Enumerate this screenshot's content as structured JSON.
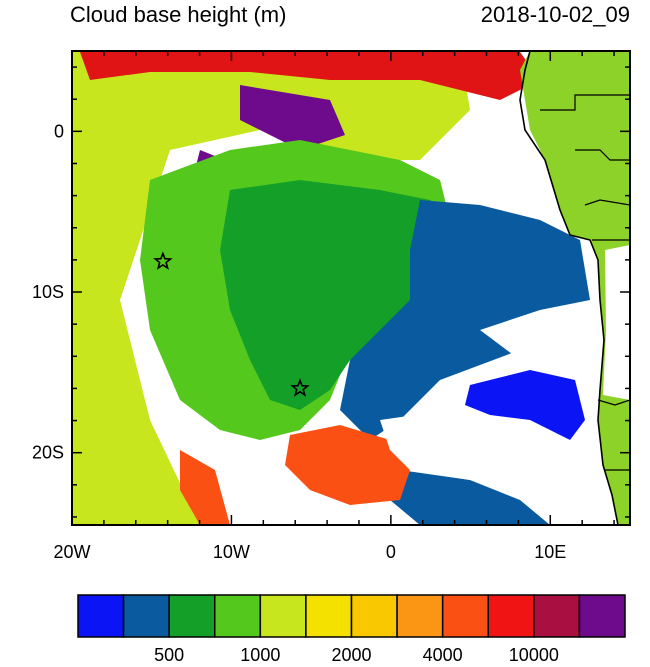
{
  "map": {
    "title": "Cloud base height (m)",
    "timestamp": "2018-10-02_09",
    "longitude_ticks": [
      {
        "value": -20,
        "label": "20W"
      },
      {
        "value": -10,
        "label": "10W"
      },
      {
        "value": 0,
        "label": "0"
      },
      {
        "value": 10,
        "label": "10E"
      }
    ],
    "latitude_ticks": [
      {
        "value": 0,
        "label": "0"
      },
      {
        "value": -10,
        "label": "10S"
      },
      {
        "value": -20,
        "label": "20S"
      }
    ],
    "extent": {
      "lon_min": -20,
      "lon_max": 15,
      "lat_min": -24.5,
      "lat_max": 5
    }
  },
  "colorbar": {
    "colors": [
      "#0a14f5",
      "#0a5aa0",
      "#14a028",
      "#55c81e",
      "#c8e61e",
      "#f5e100",
      "#fac800",
      "#fa9614",
      "#fa5014",
      "#f01414",
      "#aa0f41",
      "#6e0a8c"
    ],
    "labels": [
      {
        "text": "500",
        "after_box": 2
      },
      {
        "text": "1000",
        "after_box": 4
      },
      {
        "text": "2000",
        "after_box": 6
      },
      {
        "text": "4000",
        "after_box": 8
      },
      {
        "text": "10000",
        "after_box": 10
      }
    ]
  },
  "markers": [
    {
      "name": "star-marker-north",
      "lon": -14.3,
      "lat": -8.1
    },
    {
      "name": "star-marker-south",
      "lon": -5.7,
      "lat": -16.0
    }
  ],
  "colors": {
    "ocean_clear": "#ffffff",
    "land": "#8cd228",
    "coastline": "#000000",
    "frame": "#000000"
  }
}
